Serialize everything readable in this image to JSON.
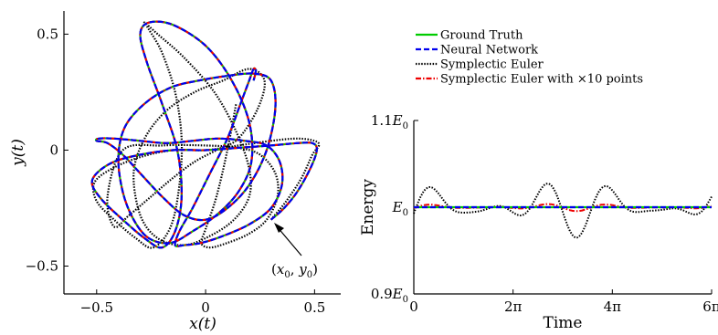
{
  "chart_data": [
    {
      "type": "line",
      "xlabel": "x(t)",
      "ylabel": "y(t)",
      "xlim": [
        -0.65,
        0.62
      ],
      "ylim": [
        -0.62,
        0.6
      ],
      "xticks": [
        -0.5,
        0,
        0.5
      ],
      "yticks": [
        -0.5,
        0,
        0.5
      ],
      "xtick_labels": [
        "−0.5",
        "0",
        "0.5"
      ],
      "ytick_labels": [
        "−0.5",
        "0",
        "0.5"
      ],
      "annotation": "(x0, y0)",
      "annotation_point": [
        0.3,
        -0.3
      ],
      "series": [
        {
          "name": "Ground Truth",
          "color": "#00cc00",
          "style": "solid",
          "x": [
            0.3,
            0.36,
            0.42,
            0.48,
            0.51,
            0.49,
            0.42,
            0.3,
            0.15,
            0.0,
            -0.15,
            -0.3,
            -0.42,
            -0.5,
            -0.52,
            -0.47,
            -0.38,
            -0.28,
            -0.2,
            -0.14,
            -0.11,
            -0.13,
            -0.2,
            -0.27,
            -0.3,
            -0.26,
            -0.15,
            0.0,
            0.12,
            0.2,
            0.21,
            0.15,
            0.05,
            -0.06,
            -0.16,
            -0.26,
            -0.33,
            -0.38,
            -0.4,
            -0.37,
            -0.28,
            -0.16,
            -0.03,
            0.1,
            0.22,
            0.3,
            0.32,
            0.28,
            0.2,
            0.1,
            0.0,
            -0.1,
            -0.2,
            -0.3,
            -0.38,
            -0.45,
            -0.5,
            -0.49,
            -0.42,
            -0.3,
            -0.18,
            -0.06,
            0.06,
            0.18,
            0.28,
            0.34,
            0.35,
            0.3,
            0.2,
            0.08,
            -0.02,
            -0.1,
            -0.14,
            -0.12,
            -0.06,
            0.02,
            0.1,
            0.16,
            0.2,
            0.22,
            0.23,
            0.22
          ],
          "y": [
            -0.3,
            -0.25,
            -0.18,
            -0.08,
            0.0,
            0.03,
            0.03,
            0.02,
            0.01,
            0.0,
            0.0,
            -0.02,
            -0.05,
            -0.1,
            -0.15,
            -0.22,
            -0.3,
            -0.38,
            -0.42,
            -0.35,
            -0.2,
            0.0,
            0.2,
            0.38,
            0.5,
            0.55,
            0.54,
            0.45,
            0.3,
            0.12,
            -0.05,
            -0.18,
            -0.28,
            -0.35,
            -0.4,
            -0.38,
            -0.3,
            -0.18,
            -0.03,
            0.1,
            0.2,
            0.27,
            0.3,
            0.32,
            0.33,
            0.3,
            0.18,
            0.0,
            -0.15,
            -0.25,
            -0.3,
            -0.28,
            -0.2,
            -0.1,
            -0.02,
            0.03,
            0.04,
            0.05,
            0.05,
            0.04,
            0.03,
            0.04,
            0.05,
            0.04,
            0.02,
            -0.05,
            -0.15,
            -0.25,
            -0.32,
            -0.37,
            -0.4,
            -0.41,
            -0.41,
            -0.35,
            -0.25,
            -0.1,
            0.05,
            0.2,
            0.3,
            0.35,
            0.34,
            0.3
          ]
        },
        {
          "name": "Neural Network",
          "color": "#0000ee",
          "style": "dashed",
          "same_as": "Ground Truth"
        },
        {
          "name": "Symplectic Euler",
          "color": "#000000",
          "style": "dotted",
          "x": [
            0.3,
            0.37,
            0.44,
            0.49,
            0.52,
            0.5,
            0.42,
            0.3,
            0.15,
            0.0,
            -0.15,
            -0.3,
            -0.43,
            -0.51,
            -0.5,
            -0.42,
            -0.32,
            -0.24,
            -0.16,
            -0.12,
            -0.11,
            -0.14,
            -0.2,
            -0.26,
            -0.28,
            -0.22,
            -0.1,
            0.04,
            0.14,
            0.2,
            0.2,
            0.13,
            0.02,
            -0.1,
            -0.22,
            -0.3,
            -0.33,
            -0.28,
            -0.18,
            -0.05,
            0.08,
            0.2,
            0.27,
            0.24,
            0.15,
            0.05,
            -0.05,
            -0.15,
            -0.25,
            -0.35,
            -0.42,
            -0.45,
            -0.38,
            -0.2,
            0.0,
            0.15,
            0.25,
            0.32,
            0.33,
            0.28,
            0.2,
            0.1,
            0.02,
            -0.02,
            0.0,
            0.05,
            0.1,
            0.14
          ],
          "y": [
            -0.3,
            -0.22,
            -0.12,
            -0.02,
            0.02,
            0.04,
            0.05,
            0.04,
            0.02,
            0.0,
            0.0,
            -0.03,
            -0.08,
            -0.14,
            -0.22,
            -0.3,
            -0.38,
            -0.42,
            -0.33,
            -0.15,
            0.05,
            0.25,
            0.42,
            0.52,
            0.55,
            0.5,
            0.4,
            0.25,
            0.08,
            -0.08,
            -0.2,
            -0.3,
            -0.37,
            -0.41,
            -0.38,
            -0.28,
            -0.1,
            0.05,
            0.17,
            0.25,
            0.3,
            0.35,
            0.3,
            0.18,
            0.05,
            0.0,
            -0.05,
            -0.12,
            -0.2,
            -0.28,
            -0.33,
            -0.2,
            0.0,
            0.02,
            0.02,
            0.01,
            -0.02,
            -0.1,
            -0.2,
            -0.3,
            -0.36,
            -0.4,
            -0.42,
            -0.4,
            -0.34,
            -0.2,
            0.0,
            0.2
          ]
        },
        {
          "name": "Symplectic Euler with ×10 points",
          "color": "#ee0000",
          "style": "dashdot",
          "same_as": "Ground Truth"
        }
      ]
    },
    {
      "type": "line",
      "xlabel": "Time",
      "ylabel": "Energy",
      "xlim": [
        0,
        18.85
      ],
      "ylim": [
        0.9,
        1.1
      ],
      "xtick_values": [
        0,
        6.283,
        12.566,
        18.85
      ],
      "xtick_labels": [
        "0",
        "2π",
        "4π",
        "6π"
      ],
      "ytick_values": [
        0.9,
        1.0,
        1.1
      ],
      "ytick_labels": [
        {
          "main": "0.9E",
          "sub": "0"
        },
        {
          "main": "E",
          "sub": "0"
        },
        {
          "main": "1.1E",
          "sub": "0"
        }
      ],
      "legend": {
        "position": "top",
        "entries": [
          "Ground Truth",
          "Neural Network",
          "Symplectic Euler",
          "Symplectic Euler with ×10 points"
        ]
      },
      "series": [
        {
          "name": "Ground Truth",
          "color": "#00cc00",
          "style": "solid",
          "kind": "constant",
          "value": 1.0
        },
        {
          "name": "Neural Network",
          "color": "#0000ee",
          "style": "dashed",
          "kind": "constant",
          "value": 1.0
        },
        {
          "name": "Symplectic Euler",
          "color": "#000000",
          "style": "dotted",
          "kind": "oscillation",
          "base": 1.0,
          "components": [
            {
              "amp": 0.03,
              "freq": 1.7,
              "phase": -0.3
            },
            {
              "amp": 0.02,
              "freq": 0.55,
              "phase": 0.9
            }
          ]
        },
        {
          "name": "Symplectic Euler with ×10 points",
          "color": "#ee0000",
          "style": "dashdot",
          "kind": "oscillation",
          "base": 1.0,
          "components": [
            {
              "amp": 0.004,
              "freq": 1.7,
              "phase": -0.3
            },
            {
              "amp": 0.002,
              "freq": 0.55,
              "phase": 0.9
            }
          ]
        }
      ]
    }
  ]
}
